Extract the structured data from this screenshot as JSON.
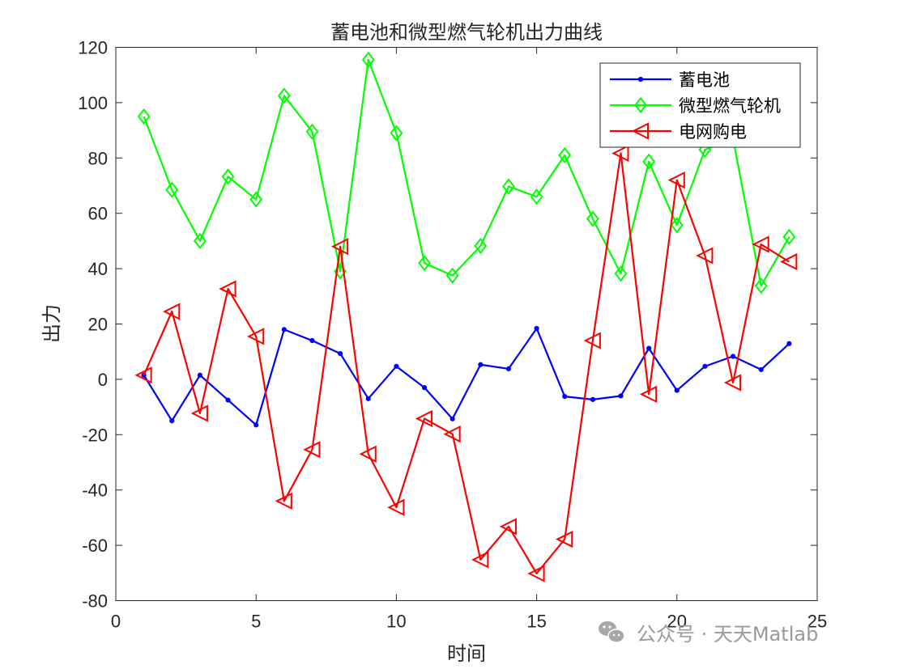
{
  "chart_data": {
    "type": "line",
    "title": "蓄电池和微型燃气轮机出力曲线",
    "xlabel": "时间",
    "ylabel": "出力",
    "xlim": [
      0,
      25
    ],
    "ylim": [
      -80,
      120
    ],
    "xticks": [
      0,
      5,
      10,
      15,
      20,
      25
    ],
    "yticks": [
      -80,
      -60,
      -40,
      -20,
      0,
      20,
      40,
      60,
      80,
      100,
      120
    ],
    "grid": false,
    "legend_position": "top-right",
    "x": [
      1,
      2,
      3,
      4,
      5,
      6,
      7,
      8,
      9,
      10,
      11,
      12,
      13,
      14,
      15,
      16,
      17,
      18,
      19,
      20,
      21,
      22,
      23,
      24
    ],
    "series": [
      {
        "name": "蓄电池",
        "color": "#0000ff",
        "marker": "dot",
        "values": [
          1.5,
          -15,
          1.5,
          -7.5,
          -16.5,
          18,
          14,
          9.3,
          -7,
          4.7,
          -3,
          -14.3,
          5.3,
          3.8,
          18.4,
          -6.2,
          -7.3,
          -6,
          11.2,
          -4,
          4.7,
          8.3,
          3.5,
          12.9
        ]
      },
      {
        "name": "微型燃气轮机",
        "color": "#00ff00",
        "marker": "diamond",
        "values": [
          95,
          68.5,
          50,
          73.3,
          65,
          102.5,
          89.5,
          39,
          115.5,
          89,
          42,
          37.5,
          48.2,
          69.7,
          66,
          81,
          58,
          38.2,
          78.7,
          55.7,
          83,
          87,
          33.8,
          51.5
        ]
      },
      {
        "name": "电网购电",
        "color": "#ff0000",
        "marker": "triangle-left",
        "values": [
          1.5,
          24.5,
          -12.3,
          32.7,
          15.5,
          -44,
          -25.4,
          48,
          -27,
          -46.3,
          -14.2,
          -19.8,
          -65.2,
          -53.2,
          -70.2,
          -57.8,
          14,
          81.7,
          -5.4,
          72,
          44.7,
          -1.2,
          48.8,
          42.5
        ]
      }
    ]
  },
  "watermark": {
    "text": "公众号 · 天天Matlab",
    "icon": "wechat-icon"
  }
}
